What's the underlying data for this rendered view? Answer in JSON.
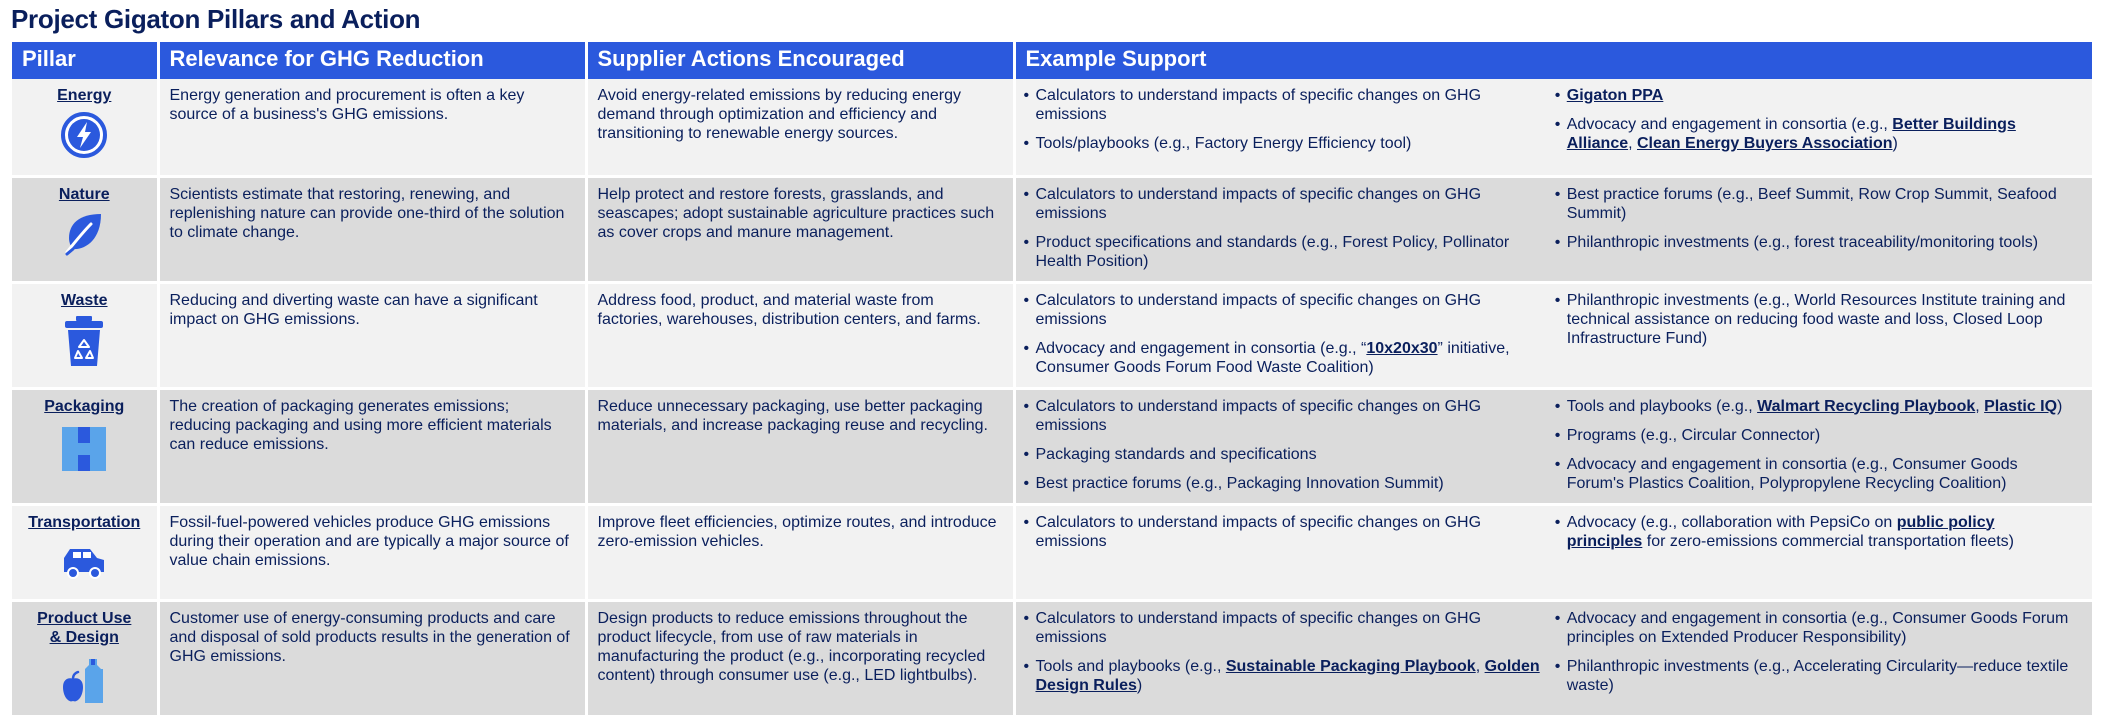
{
  "title": "Project Gigaton Pillars and Action",
  "headers": {
    "pillar": "Pillar",
    "relevance": "Relevance for GHG Reduction",
    "actions": "Supplier Actions Encouraged",
    "support": "Example Support"
  },
  "colors": {
    "header_bg": "#2b59dd",
    "icon_blue": "#2b59dd",
    "text_navy": "#0a1f5c",
    "row_light": "#f2f2f2",
    "row_dark": "#dbdbdb"
  },
  "rows": [
    {
      "pillar": "Energy",
      "icon": "lightning-bolt-icon",
      "relevance": "Energy generation and procurement is often a key source of a business's GHG emissions.",
      "actions": "Avoid energy-related emissions by reducing energy demand through optimization and efficiency and transitioning to renewable energy sources.",
      "support_left": [
        [
          {
            "t": "Calculators to understand impacts of specific changes on GHG emissions"
          }
        ],
        [
          {
            "t": "Tools/playbooks (e.g., Factory Energy Efficiency tool)"
          }
        ]
      ],
      "support_right": [
        [
          {
            "t": "Gigaton PPA",
            "link": true
          }
        ],
        [
          {
            "t": "Advocacy and engagement in consortia (e.g., "
          },
          {
            "t": "Better Buildings Alliance",
            "link": true
          },
          {
            "t": ", "
          },
          {
            "t": "Clean Energy Buyers Association",
            "link": true
          },
          {
            "t": ")"
          }
        ]
      ]
    },
    {
      "pillar": "Nature",
      "icon": "leaf-icon",
      "relevance": "Scientists estimate that restoring, renewing, and replenishing nature can provide one-third of the solution to climate change.",
      "actions": "Help protect and restore forests, grasslands, and seascapes; adopt sustainable agriculture practices such as cover crops and manure management.",
      "support_left": [
        [
          {
            "t": "Calculators to understand impacts of specific changes on GHG emissions"
          }
        ],
        [
          {
            "t": "Product specifications and standards (e.g., Forest Policy, Pollinator Health Position)"
          }
        ]
      ],
      "support_right": [
        [
          {
            "t": "Best practice forums (e.g., Beef Summit, Row Crop Summit, Seafood Summit)"
          }
        ],
        [
          {
            "t": "Philanthropic investments (e.g., forest traceability/monitoring tools)"
          }
        ]
      ]
    },
    {
      "pillar": "Waste",
      "icon": "recycling-bin-icon",
      "relevance": "Reducing and diverting waste can have a significant impact on GHG emissions.",
      "actions": "Address food, product, and material waste from factories, warehouses, distribution centers, and farms.",
      "support_left": [
        [
          {
            "t": "Calculators to understand impacts of specific changes on GHG emissions"
          }
        ],
        [
          {
            "t": "Advocacy and engagement in consortia (e.g., “"
          },
          {
            "t": "10x20x30",
            "link": true
          },
          {
            "t": "” initiative, Consumer Goods Forum Food Waste Coalition)"
          }
        ]
      ],
      "support_right": [
        [
          {
            "t": "Philanthropic investments (e.g., World Resources Institute training and technical assistance on reducing food waste and loss, Closed Loop Infrastructure Fund)"
          }
        ]
      ]
    },
    {
      "pillar": "Packaging",
      "icon": "package-box-icon",
      "relevance": "The creation of packaging generates emissions; reducing packaging and using more efficient materials can reduce emissions.",
      "actions": "Reduce unnecessary packaging, use better packaging materials, and increase packaging reuse and recycling.",
      "support_left": [
        [
          {
            "t": "Calculators to understand impacts of specific changes on GHG emissions"
          }
        ],
        [
          {
            "t": "Packaging standards and specifications"
          }
        ],
        [
          {
            "t": "Best practice forums (e.g., Packaging Innovation Summit)"
          }
        ]
      ],
      "support_right": [
        [
          {
            "t": "Tools and playbooks (e.g., "
          },
          {
            "t": "Walmart Recycling Playbook",
            "link": true
          },
          {
            "t": ", "
          },
          {
            "t": "Plastic IQ",
            "link": true
          },
          {
            "t": ")"
          }
        ],
        [
          {
            "t": "Programs (e.g., Circular Connector)"
          }
        ],
        [
          {
            "t": "Advocacy and engagement in consortia (e.g., Consumer Goods Forum's Plastics Coalition, Polypropylene Recycling Coalition)"
          }
        ]
      ]
    },
    {
      "pillar": "Transportation",
      "icon": "vehicle-icon",
      "relevance": "Fossil-fuel-powered vehicles produce GHG emissions during their operation and are typically a major source of value chain emissions.",
      "actions": "Improve fleet efficiencies, optimize routes, and introduce zero-emission vehicles.",
      "support_left": [
        [
          {
            "t": "Calculators to understand impacts of specific changes on GHG emissions"
          }
        ]
      ],
      "support_right": [
        [
          {
            "t": "Advocacy (e.g., collaboration with PepsiCo on "
          },
          {
            "t": "public policy principles",
            "link": true
          },
          {
            "t": " for zero-emissions commercial transportation fleets)"
          }
        ]
      ]
    },
    {
      "pillar": "Product Use & Design",
      "icon": "apple-and-bottle-icon",
      "relevance": "Customer use of energy-consuming products and care and disposal of sold products results in the generation of GHG emissions.",
      "actions": "Design products to reduce emissions throughout the product lifecycle, from use of raw materials in manufacturing the product (e.g., incorporating recycled content) through consumer use (e.g., LED lightbulbs).",
      "support_left": [
        [
          {
            "t": "Calculators to understand impacts of specific changes on GHG emissions"
          }
        ],
        [
          {
            "t": "Tools and playbooks (e.g., "
          },
          {
            "t": "Sustainable Packaging Playbook",
            "link": true
          },
          {
            "t": ", "
          },
          {
            "t": "Golden Design Rules",
            "link": true
          },
          {
            "t": ")"
          }
        ]
      ],
      "support_right": [
        [
          {
            "t": "Advocacy and engagement in consortia (e.g., Consumer Goods Forum principles on Extended Producer Responsibility)"
          }
        ],
        [
          {
            "t": "Philanthropic investments (e.g., Accelerating Circularity—reduce textile waste)"
          }
        ]
      ]
    }
  ]
}
